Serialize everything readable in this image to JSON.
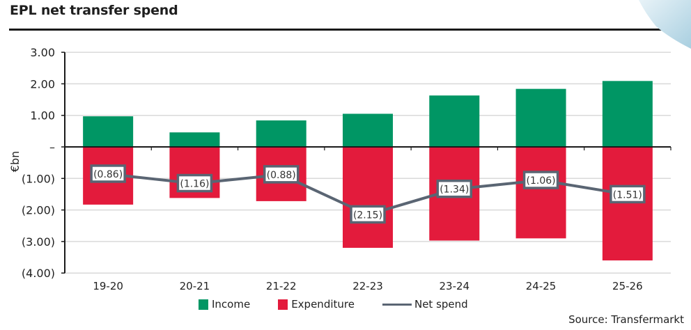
{
  "chart_data": {
    "type": "bar",
    "title": "EPL net transfer spend",
    "ylabel": "€bn",
    "xlabel": "",
    "ylim": [
      -4,
      3
    ],
    "yticks": [
      3,
      2,
      1,
      0,
      -1,
      -2,
      -3,
      -4
    ],
    "ytick_labels": [
      "3.00",
      "2.00",
      "1.00",
      "–",
      "(1.00)",
      "(2.00)",
      "(3.00)",
      "(4.00)"
    ],
    "categories": [
      "19-20",
      "20-21",
      "21-22",
      "22-23",
      "23-24",
      "24-25",
      "25-26"
    ],
    "series": [
      {
        "name": "Income",
        "type": "bar",
        "color": "#009664",
        "values": [
          0.97,
          0.46,
          0.84,
          1.05,
          1.63,
          1.84,
          2.09
        ]
      },
      {
        "name": "Expenditure",
        "type": "bar",
        "color": "#e31b3c",
        "values": [
          -1.83,
          -1.62,
          -1.72,
          -3.2,
          -2.97,
          -2.9,
          -3.6
        ]
      },
      {
        "name": "Net spend",
        "type": "line",
        "color": "#5a6573",
        "values": [
          -0.86,
          -1.16,
          -0.88,
          -2.15,
          -1.34,
          -1.06,
          -1.51
        ],
        "labels": [
          "(0.86)",
          "(1.16)",
          "(0.88)",
          "(2.15)",
          "(1.34)",
          "(1.06)",
          "(1.51)"
        ]
      }
    ],
    "grid": true,
    "legend_position": "bottom",
    "source": "Source: Transfermarkt"
  }
}
